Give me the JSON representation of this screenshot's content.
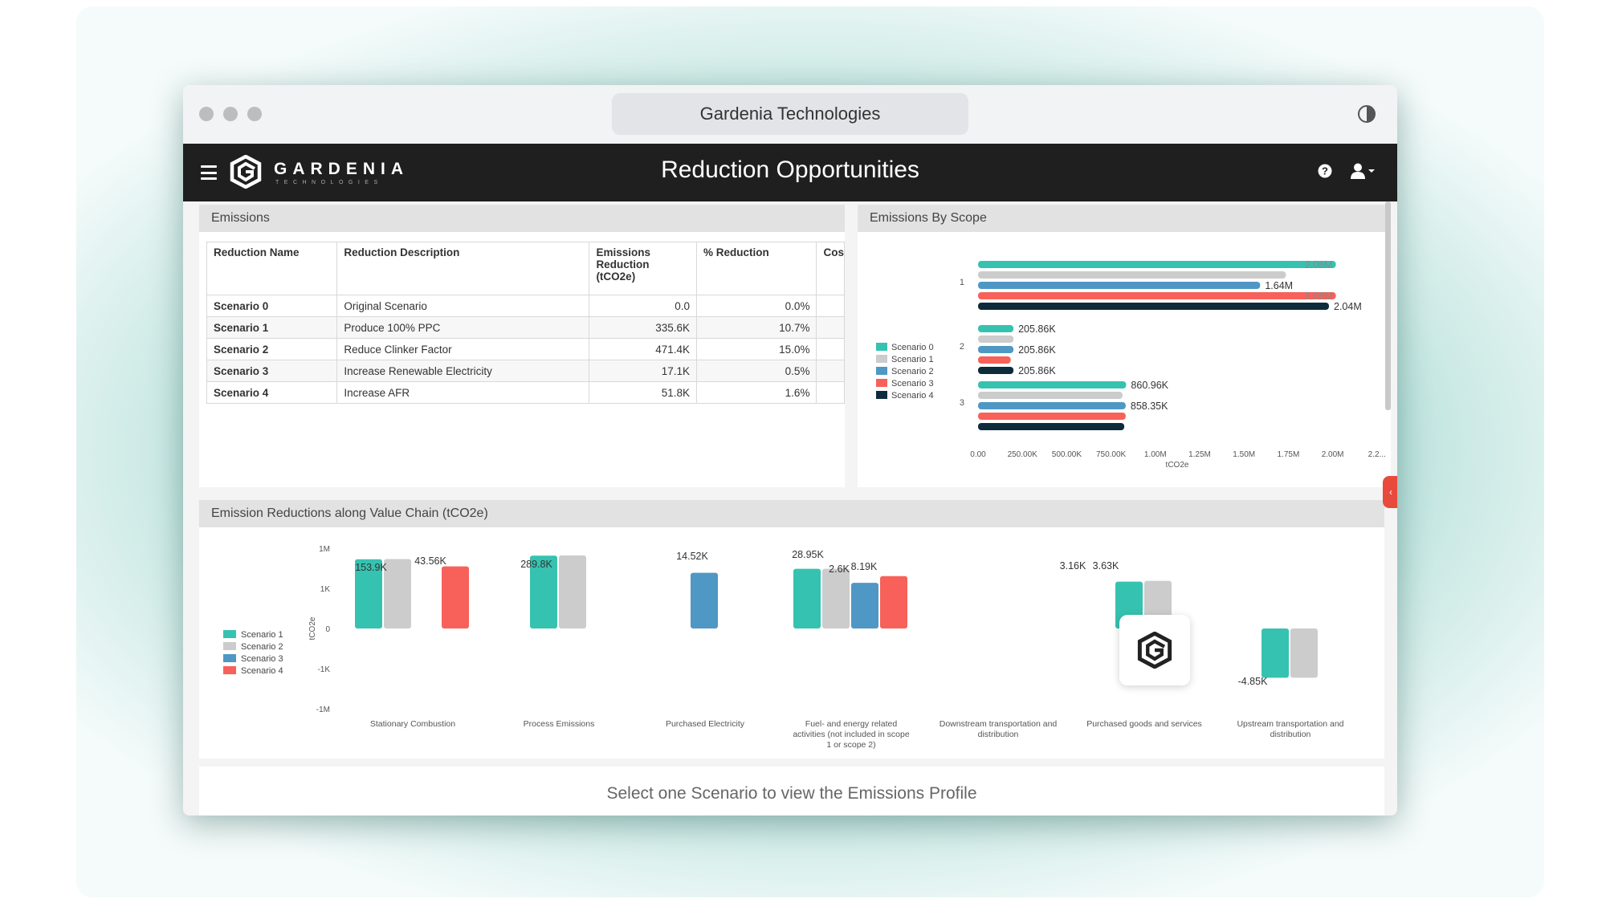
{
  "window": {
    "title": "Gardenia Technologies"
  },
  "appbar": {
    "brand": "GARDENIA",
    "brand_sub": "TECHNOLOGIES",
    "page_title": "Reduction Opportunities"
  },
  "emissions": {
    "header": "Emissions",
    "columns": [
      "Reduction Name",
      "Reduction Description",
      "Emissions Reduction (tCO2e)",
      "% Reduction",
      "Cos"
    ],
    "rows": [
      [
        "Scenario 0",
        "Original Scenario",
        "0.0",
        "0.0%"
      ],
      [
        "Scenario 1",
        "Produce 100% PPC",
        "335.6K",
        "10.7%"
      ],
      [
        "Scenario 2",
        "Reduce Clinker Factor",
        "471.4K",
        "15.0%"
      ],
      [
        "Scenario 3",
        "Increase Renewable Electricity",
        "17.1K",
        "0.5%"
      ],
      [
        "Scenario 4",
        "Increase AFR",
        "51.8K",
        "1.6%"
      ]
    ]
  },
  "colors": {
    "s0": "#36c2b0",
    "s1": "#cccccc",
    "s2": "#4f97c4",
    "s3": "#f7615a",
    "s4": "#0d2b3b"
  },
  "chart_data": [
    {
      "type": "bar",
      "orientation": "horizontal",
      "title": "Emissions By Scope",
      "xlabel": "tCO2e",
      "categories": [
        "1",
        "2",
        "3"
      ],
      "xlim": [
        0,
        2250000
      ],
      "x_ticks": [
        "0.00",
        "250.00K",
        "500.00K",
        "750.00K",
        "1.00M",
        "1.25M",
        "1.50M",
        "1.75M",
        "2.00M",
        "2.2..."
      ],
      "legend_position": "left",
      "series": [
        {
          "name": "Scenario 0",
          "values": [
            2080000,
            205860,
            860960
          ],
          "labels": [
            "2.08M",
            "205.86K",
            "860.96K"
          ]
        },
        {
          "name": "Scenario 1",
          "values": [
            1790000,
            205860,
            840000
          ],
          "labels": [
            "",
            "",
            ""
          ]
        },
        {
          "name": "Scenario 2",
          "values": [
            1640000,
            205860,
            858350
          ],
          "labels": [
            "1.64M",
            "205.86K",
            "858.35K"
          ]
        },
        {
          "name": "Scenario 3",
          "values": [
            2080000,
            190000,
            858350
          ],
          "labels": [
            "2.08M",
            "",
            ""
          ]
        },
        {
          "name": "Scenario 4",
          "values": [
            2040000,
            205860,
            850000
          ],
          "labels": [
            "2.04M",
            "205.86K",
            ""
          ]
        }
      ]
    },
    {
      "type": "bar",
      "title": "Emission Reductions along Value Chain (tCO2e)",
      "ylabel": "tCO2e",
      "y_ticks": [
        "1M",
        "1K",
        "0",
        "-1K",
        "-1M"
      ],
      "legend_position": "left",
      "categories": [
        "Stationary Combustion",
        "Process Emissions",
        "Purchased Electricity",
        "Fuel- and energy related activities (not included in scope 1 or scope 2)",
        "Downstream transportation and distribution",
        "Purchased goods and services",
        "Upstream transportation and distribution"
      ],
      "series": [
        {
          "name": "Scenario 1",
          "values": [
            150000,
            280000,
            null,
            28950,
            null,
            3160,
            -4850
          ]
        },
        {
          "name": "Scenario 2",
          "values": [
            153900,
            289800,
            null,
            28950,
            null,
            3630,
            -4850
          ]
        },
        {
          "name": "Scenario 3",
          "values": [
            null,
            null,
            14520,
            2600,
            null,
            null,
            null
          ]
        },
        {
          "name": "Scenario 4",
          "values": [
            43560,
            null,
            null,
            8190,
            null,
            null,
            null
          ]
        }
      ],
      "data_labels": [
        {
          "category": 0,
          "text": "153.9K"
        },
        {
          "category": 0,
          "text": "43.56K"
        },
        {
          "category": 1,
          "text": "289.8K"
        },
        {
          "category": 2,
          "text": "14.52K"
        },
        {
          "category": 3,
          "text": "28.95K"
        },
        {
          "category": 3,
          "text": "2.6K"
        },
        {
          "category": 3,
          "text": "8.19K"
        },
        {
          "category": 5,
          "text": "3.16K"
        },
        {
          "category": 5,
          "text": "3.63K"
        },
        {
          "category": 6,
          "text": "-4.85K"
        }
      ]
    }
  ],
  "bottom": {
    "prompt": "Select one Scenario to view the Emissions Profile"
  }
}
